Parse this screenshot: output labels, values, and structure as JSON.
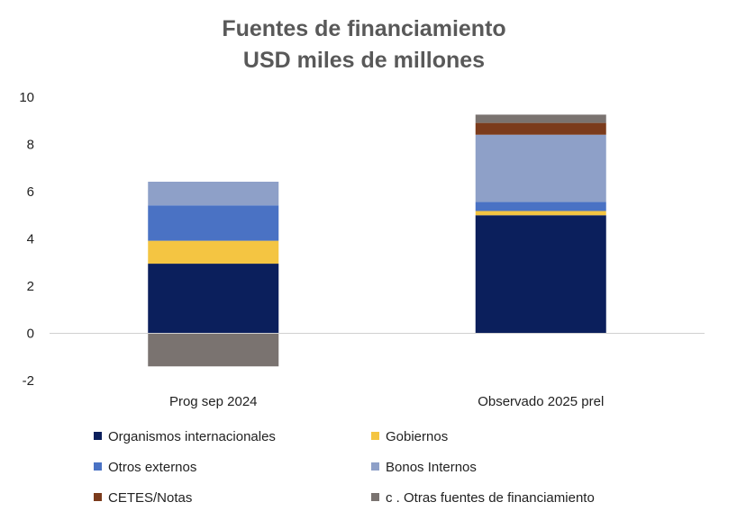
{
  "chart_data": {
    "type": "bar",
    "stacked": true,
    "title": "Fuentes de financiamiento",
    "subtitle": "USD miles de millones",
    "categories": [
      "Prog sep 2024",
      "Observado 2025 prel"
    ],
    "ylim": [
      -2,
      10
    ],
    "yticks": [
      "-2",
      "0",
      "2",
      "4",
      "6",
      "8",
      "10"
    ],
    "ytick_values": [
      -2,
      0,
      2,
      4,
      6,
      8,
      10
    ],
    "grid": false,
    "legend_position": "bottom",
    "series": [
      {
        "name": "Organismos internacionales",
        "color": "#0b1f5c",
        "values": [
          2.95,
          5.0
        ]
      },
      {
        "name": "Gobiernos",
        "color": "#f4c542",
        "values": [
          0.97,
          0.18
        ]
      },
      {
        "name": "Otros externos",
        "color": "#4a72c4",
        "values": [
          1.5,
          0.38
        ]
      },
      {
        "name": "Bonos Internos",
        "color": "#8ea0c8",
        "values": [
          1.0,
          2.85
        ]
      },
      {
        "name": "CETES/Notas",
        "color": "#7b3b1c",
        "values": [
          0.0,
          0.5
        ]
      },
      {
        "name": "c . Otras fuentes de financiamiento",
        "color": "#7a7370",
        "values": [
          -1.4,
          0.35
        ]
      }
    ]
  }
}
